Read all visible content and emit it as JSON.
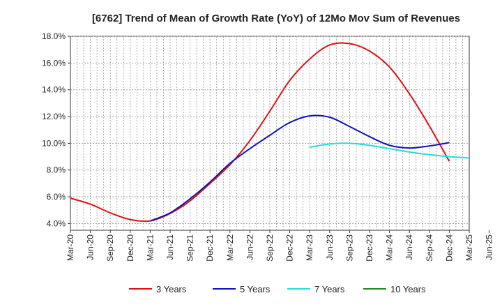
{
  "chart_data": {
    "type": "line",
    "title": "[6762]  Trend of Mean of Growth Rate (YoY) of 12Mo Mov Sum of Revenues",
    "xlabel": "",
    "ylabel": "",
    "ylim": [
      3.5,
      18.0
    ],
    "yticks": [
      4.0,
      6.0,
      8.0,
      10.0,
      12.0,
      14.0,
      16.0,
      18.0
    ],
    "ytick_labels": [
      "4.0%",
      "6.0%",
      "8.0%",
      "10.0%",
      "12.0%",
      "14.0%",
      "16.0%",
      "18.0%"
    ],
    "x_categories": [
      "Mar-20",
      "Jun-20",
      "Sep-20",
      "Dec-20",
      "Mar-21",
      "Jun-21",
      "Sep-21",
      "Dec-21",
      "Mar-22",
      "Jun-22",
      "Sep-22",
      "Dec-22",
      "Mar-23",
      "Jun-23",
      "Sep-23",
      "Dec-23",
      "Mar-24",
      "Jun-24",
      "Sep-24",
      "Dec-24",
      "Mar-25",
      "Jun-25"
    ],
    "grid": true,
    "legend_position": "bottom",
    "series": [
      {
        "name": "3 Years",
        "color": "#dd1111",
        "start_index": 0,
        "values": [
          5.9,
          5.45,
          4.8,
          4.3,
          4.2,
          4.75,
          5.7,
          7.0,
          8.4,
          10.2,
          12.4,
          14.7,
          16.3,
          17.35,
          17.45,
          16.9,
          15.7,
          13.7,
          11.3,
          8.65
        ]
      },
      {
        "name": "5 Years",
        "color": "#1111bb",
        "start_index": 4,
        "values": [
          4.2,
          4.8,
          5.85,
          7.1,
          8.5,
          9.6,
          10.6,
          11.55,
          12.05,
          11.95,
          11.25,
          10.5,
          9.85,
          9.65,
          9.8,
          10.05
        ]
      },
      {
        "name": "7 Years",
        "color": "#22dddd",
        "start_index": 12,
        "values": [
          9.7,
          9.95,
          10.0,
          9.85,
          9.6,
          9.35,
          9.15,
          9.0,
          8.9
        ]
      },
      {
        "name": "10 Years",
        "color": "#228822",
        "start_index": 0,
        "values": []
      }
    ]
  }
}
